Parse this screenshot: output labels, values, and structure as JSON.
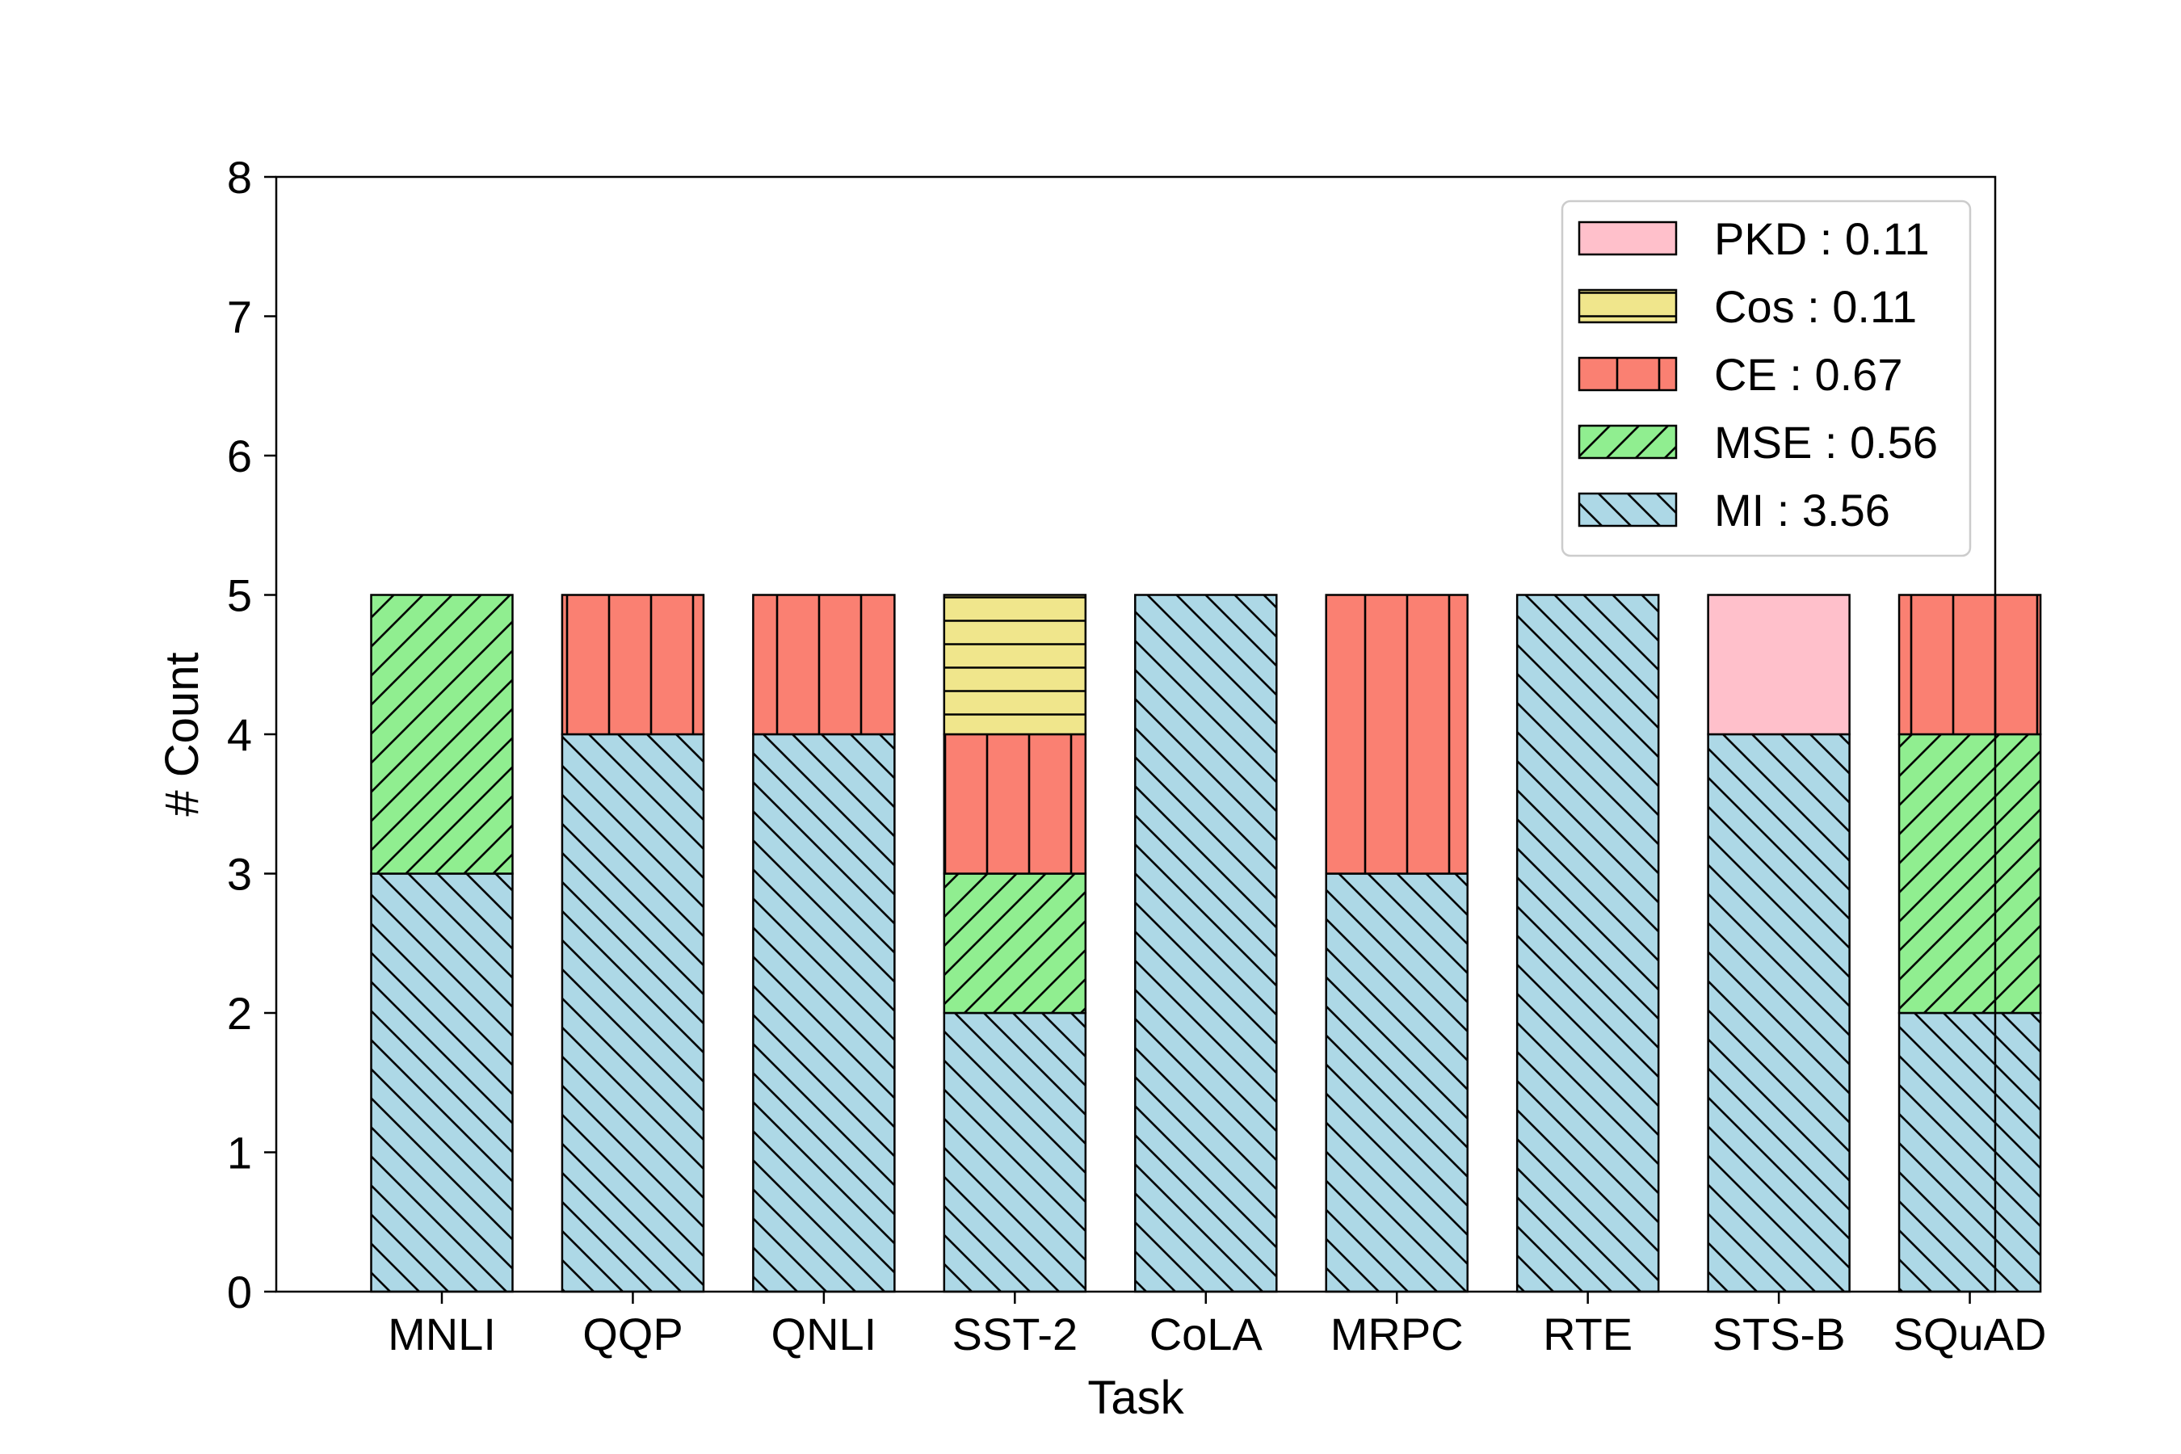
{
  "chart_data": {
    "type": "bar",
    "stacked": true,
    "title": "",
    "xlabel": "Task",
    "ylabel": "# Count",
    "ylim": [
      0,
      8
    ],
    "yticks": [
      0,
      1,
      2,
      3,
      4,
      5,
      6,
      7,
      8
    ],
    "grid": false,
    "legend_position": "top-right",
    "categories": [
      "MNLI",
      "QQP",
      "QNLI",
      "SST-2",
      "CoLA",
      "MRPC",
      "RTE",
      "STS-B",
      "SQuAD"
    ],
    "series": [
      {
        "key": "mi",
        "name": "MI",
        "legend_value": "3.56",
        "color": "#add8e6",
        "hatch": "backslash",
        "values": [
          3,
          4,
          4,
          2,
          5,
          3,
          5,
          4,
          2
        ]
      },
      {
        "key": "mse",
        "name": "MSE",
        "legend_value": "0.56",
        "color": "#90ee90",
        "hatch": "slash",
        "values": [
          2,
          0,
          0,
          1,
          0,
          0,
          0,
          0,
          2
        ]
      },
      {
        "key": "ce",
        "name": "CE",
        "legend_value": "0.67",
        "color": "#fa8072",
        "hatch": "vertical",
        "values": [
          0,
          1,
          1,
          1,
          0,
          2,
          0,
          0,
          1
        ]
      },
      {
        "key": "cos",
        "name": "Cos",
        "legend_value": "0.11",
        "color": "#f0e68c",
        "hatch": "horizontal",
        "values": [
          0,
          0,
          0,
          1,
          0,
          0,
          0,
          0,
          0
        ]
      },
      {
        "key": "pkd",
        "name": "PKD",
        "legend_value": "0.11",
        "color": "#ffc0cb",
        "hatch": "none",
        "values": [
          0,
          0,
          0,
          0,
          0,
          0,
          0,
          1,
          0
        ]
      }
    ],
    "legend_order": [
      "pkd",
      "cos",
      "ce",
      "mse",
      "mi"
    ],
    "legend_separator": " : "
  }
}
